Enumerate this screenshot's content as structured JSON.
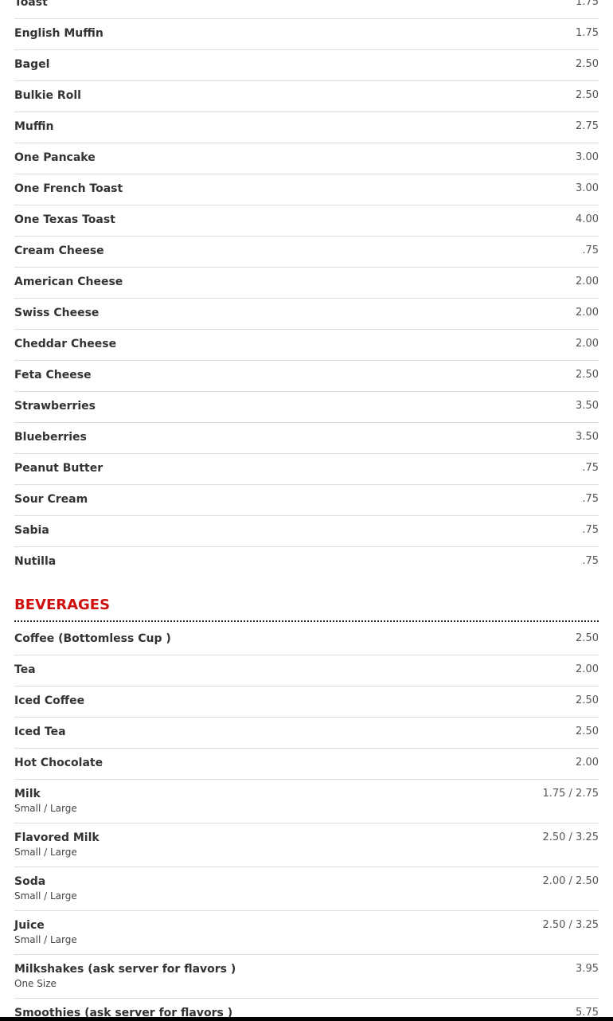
{
  "sections": [
    {
      "items": [
        {
          "name": "Toast",
          "price": "1.75"
        },
        {
          "name": "English Muffin",
          "price": "1.75"
        },
        {
          "name": "Bagel",
          "price": "2.50"
        },
        {
          "name": "Bulkie Roll",
          "price": "2.50"
        },
        {
          "name": "Muffin",
          "price": "2.75"
        },
        {
          "name": "One Pancake",
          "price": "3.00"
        },
        {
          "name": "One French Toast",
          "price": "3.00"
        },
        {
          "name": "One Texas Toast",
          "price": "4.00"
        },
        {
          "name": "Cream Cheese",
          "price": ".75"
        },
        {
          "name": "American Cheese",
          "price": "2.00"
        },
        {
          "name": "Swiss Cheese",
          "price": "2.00"
        },
        {
          "name": "Cheddar Cheese",
          "price": "2.00"
        },
        {
          "name": "Feta Cheese",
          "price": "2.50"
        },
        {
          "name": "Strawberries",
          "price": "3.50"
        },
        {
          "name": "Blueberries",
          "price": "3.50"
        },
        {
          "name": "Peanut Butter",
          "price": ".75"
        },
        {
          "name": "Sour Cream",
          "price": ".75"
        },
        {
          "name": "Sabia",
          "price": ".75"
        },
        {
          "name": "Nutilla",
          "price": ".75"
        }
      ]
    },
    {
      "title": "BEVERAGES",
      "items": [
        {
          "name": "Coffee (Bottomless Cup )",
          "price": "2.50"
        },
        {
          "name": "Tea",
          "price": "2.00"
        },
        {
          "name": "Iced Coffee",
          "price": "2.50"
        },
        {
          "name": "Iced Tea",
          "price": "2.50"
        },
        {
          "name": "Hot Chocolate",
          "price": "2.00"
        },
        {
          "name": "Milk",
          "price": "1.75 / 2.75",
          "note": "Small / Large"
        },
        {
          "name": "Flavored Milk",
          "price": "2.50 / 3.25",
          "note": "Small / Large"
        },
        {
          "name": "Soda",
          "price": "2.00 / 2.50",
          "note": "Small / Large"
        },
        {
          "name": "Juice",
          "price": "2.50 / 3.25",
          "note": "Small / Large"
        },
        {
          "name": "Milkshakes (ask server for flavors )",
          "price": "3.95",
          "note": "One Size"
        },
        {
          "name": "Smoothies (ask server for flavors )",
          "price": "5.75"
        }
      ]
    }
  ]
}
